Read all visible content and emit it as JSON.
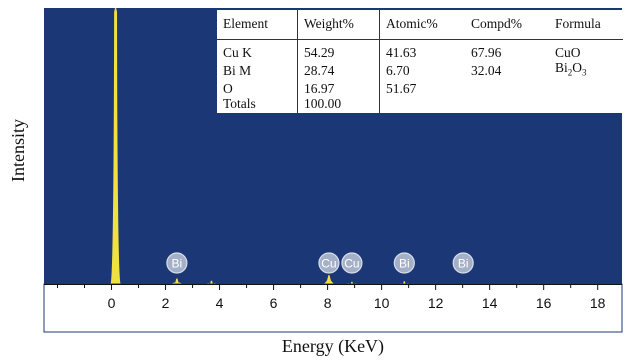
{
  "chart_data": {
    "type": "line",
    "xlabel": "Energy (KeV)",
    "ylabel": "Intensity",
    "xlim": [
      -2.5,
      18.9
    ],
    "x_ticks": [
      0,
      2,
      4,
      6,
      8,
      10,
      12,
      14,
      16,
      18
    ],
    "colors": {
      "background": "#1c3775",
      "spectrum": "#f0e040",
      "marker": "#a4b0c8",
      "marker_border": "#d8deea"
    },
    "peaks": [
      {
        "energy": 0.15,
        "intensity": 1.0
      },
      {
        "energy": 2.42,
        "intensity": 0.02
      },
      {
        "energy": 3.7,
        "intensity": 0.012
      },
      {
        "energy": 8.05,
        "intensity": 0.032
      },
      {
        "energy": 8.9,
        "intensity": 0.008
      },
      {
        "energy": 10.84,
        "intensity": 0.01
      }
    ],
    "markers": [
      {
        "label": "Bi",
        "energy": 2.42
      },
      {
        "label": "Cu",
        "energy": 8.05
      },
      {
        "label": "Cu",
        "energy": 8.9
      },
      {
        "label": "Bi",
        "energy": 10.84
      },
      {
        "label": "Bi",
        "energy": 13.02
      }
    ],
    "table": {
      "headers": [
        "Element",
        "Weight%",
        "Atomic%",
        "Compd%",
        "Formula"
      ],
      "rows": [
        {
          "element": "Cu K",
          "weight": "54.29",
          "atomic": "41.63",
          "compd": "67.96",
          "formula": "CuO"
        },
        {
          "element": "Bi M",
          "weight": "28.74",
          "atomic": "6.70",
          "compd": "32.04",
          "formula_base": "Bi",
          "formula_sub1": "2",
          "formula_mid": "O",
          "formula_sub2": "3"
        },
        {
          "element": "O",
          "weight": "16.97",
          "atomic": "51.67",
          "compd": "",
          "formula": ""
        },
        {
          "element": "Totals",
          "weight": "100.00",
          "atomic": "",
          "compd": "",
          "formula": ""
        }
      ]
    }
  }
}
